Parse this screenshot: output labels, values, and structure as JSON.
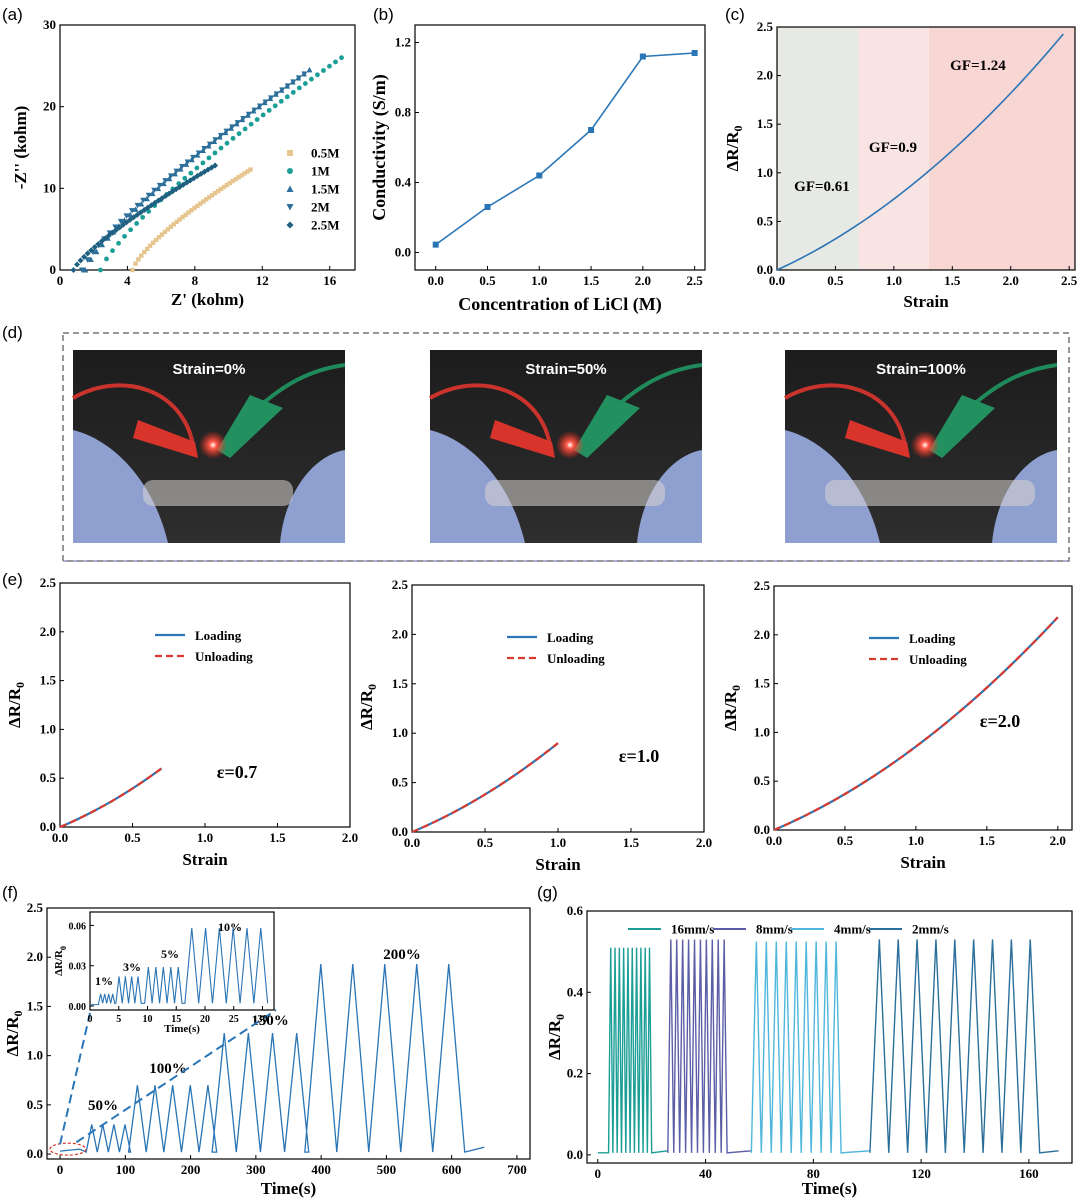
{
  "colors": {
    "blue": "#2a75b5",
    "teal": "#1a9e96",
    "lightblue": "#4fb6dc",
    "navy": "#2b6f9a",
    "purple": "#5b5ea6",
    "red": "#d83a2e",
    "tan": "#e6c68e",
    "regionGray": "#e6e9e4",
    "regionPink1": "#f8e4e2",
    "regionPink2": "#f7d6d4"
  },
  "panels": {
    "a": "(a)",
    "b": "(b)",
    "c": "(c)",
    "d": "(d)",
    "e": "(e)",
    "f": "(f)",
    "g": "(g)"
  },
  "photos": [
    {
      "label": "Strain=0%"
    },
    {
      "label": "Strain=50%"
    },
    {
      "label": "Strain=100%"
    }
  ],
  "chart_data": [
    {
      "id": "a",
      "type": "scatter",
      "xlabel": "Z' (kohm)",
      "ylabel": "-Z'' (kohm)",
      "xlim": [
        0,
        17.5
      ],
      "ylim": [
        0,
        30
      ],
      "xticks": [
        "0",
        "4",
        "8",
        "12",
        "16"
      ],
      "yticks": [
        "0",
        "10",
        "20",
        "30"
      ],
      "series": [
        {
          "name": "0.5M",
          "start": [
            4.3,
            0
          ],
          "end": [
            11.3,
            12.3
          ],
          "curve": 0.25
        },
        {
          "name": "1M",
          "start": [
            2.4,
            0
          ],
          "end": [
            16.7,
            26
          ],
          "curve": 0.2
        },
        {
          "name": "1.5M",
          "start": [
            1.5,
            0
          ],
          "end": [
            14.8,
            24.5
          ],
          "curve": 0.2
        },
        {
          "name": "2M",
          "start": [
            1.3,
            0
          ],
          "end": [
            14.5,
            24
          ],
          "curve": 0.2
        },
        {
          "name": "2.5M",
          "start": [
            0.8,
            0
          ],
          "end": [
            9.2,
            12.8
          ],
          "curve": 0.2
        }
      ]
    },
    {
      "id": "b",
      "type": "line",
      "xlabel": "Concentration of LiCl (M)",
      "ylabel": "Conductivity (S/m)",
      "xlim": [
        -0.2,
        2.6
      ],
      "ylim": [
        -0.1,
        1.3
      ],
      "xticks": [
        "0.0",
        "0.5",
        "1.0",
        "1.5",
        "2.0",
        "2.5"
      ],
      "yticks": [
        "0.0",
        "0.4",
        "0.8",
        "1.2"
      ],
      "x": [
        0,
        0.5,
        1.0,
        1.5,
        2.0,
        2.5
      ],
      "y": [
        0.045,
        0.26,
        0.44,
        0.7,
        1.12,
        1.14
      ]
    },
    {
      "id": "c",
      "type": "line",
      "xlabel": "Strain",
      "ylabel": "ΔR/R0",
      "xlim": [
        0,
        2.55
      ],
      "ylim": [
        0,
        2.5
      ],
      "xticks": [
        "0.0",
        "0.5",
        "1.0",
        "1.5",
        "2.0",
        "2.5"
      ],
      "yticks": [
        "0.0",
        "0.5",
        "1.0",
        "1.5",
        "2.0",
        "2.5"
      ],
      "annotations": [
        "GF=0.61",
        "GF=0.9",
        "GF=1.24"
      ],
      "regions": [
        0,
        0.7,
        1.3,
        2.55
      ],
      "x": [
        0,
        0.5,
        0.7,
        1.0,
        1.3,
        1.5,
        2.0,
        2.45
      ],
      "y": [
        0,
        0.28,
        0.41,
        0.65,
        0.97,
        1.23,
        1.85,
        2.45
      ]
    },
    {
      "id": "e1",
      "type": "line",
      "xlabel": "Strain",
      "ylabel": "ΔR/R0",
      "xlim": [
        0,
        2.0
      ],
      "ylim": [
        0,
        2.5
      ],
      "annotation": "ε=0.7",
      "xticks": [
        "0.0",
        "0.5",
        "1.0",
        "1.5",
        "2.0"
      ],
      "yticks": [
        "0.0",
        "0.5",
        "1.0",
        "1.5",
        "2.0",
        "2.5"
      ],
      "legend": [
        "Loading",
        "Unloading"
      ],
      "xmax": 0.7,
      "ymax": 0.6
    },
    {
      "id": "e2",
      "type": "line",
      "xlabel": "Strain",
      "ylabel": "ΔR/R0",
      "xlim": [
        0,
        2.0
      ],
      "ylim": [
        0,
        2.5
      ],
      "annotation": "ε=1.0",
      "xticks": [
        "0.0",
        "0.5",
        "1.0",
        "1.5",
        "2.0"
      ],
      "yticks": [
        "0.0",
        "0.5",
        "1.0",
        "1.5",
        "2.0",
        "2.5"
      ],
      "legend": [
        "Loading",
        "Unloading"
      ],
      "xmax": 1.0,
      "ymax": 0.9
    },
    {
      "id": "e3",
      "type": "line",
      "xlabel": "Strain",
      "ylabel": "ΔR/R0",
      "xlim": [
        0,
        2.1
      ],
      "ylim": [
        0,
        2.5
      ],
      "annotation": "ε=2.0",
      "xticks": [
        "0.0",
        "0.5",
        "1.0",
        "1.5",
        "2.0"
      ],
      "yticks": [
        "0.0",
        "0.5",
        "1.0",
        "1.5",
        "2.0",
        "2.5"
      ],
      "legend": [
        "Loading",
        "Unloading"
      ],
      "xmax": 2.0,
      "ymax": 2.18
    },
    {
      "id": "f",
      "type": "line",
      "xlabel": "Time(s)",
      "ylabel": "ΔR/R0",
      "xlim": [
        -20,
        720
      ],
      "ylim": [
        -0.05,
        2.5
      ],
      "xticks": [
        "0",
        "100",
        "200",
        "300",
        "400",
        "500",
        "600",
        "700"
      ],
      "yticks": [
        "0.0",
        "0.5",
        "1.0",
        "1.5",
        "2.0",
        "2.5"
      ],
      "labels": [
        "50%",
        "100%",
        "150%",
        "200%"
      ],
      "groups": [
        {
          "start": 40,
          "period": 17,
          "n": 4,
          "peak": 0.3
        },
        {
          "start": 105,
          "period": 27,
          "n": 5,
          "peak": 0.7
        },
        {
          "start": 233,
          "period": 37,
          "n": 4,
          "peak": 1.23
        },
        {
          "start": 375,
          "period": 49,
          "n": 5,
          "peak": 1.93
        }
      ],
      "inset": {
        "xlabel": "Time(s)",
        "ylabel": "ΔR/R0",
        "xlim": [
          0,
          32
        ],
        "ylim": [
          -0.003,
          0.07
        ],
        "xticks": [
          "0",
          "5",
          "10",
          "15",
          "20",
          "25",
          "30"
        ],
        "yticks": [
          "0.00",
          "0.03",
          "0.06"
        ],
        "labels": [
          "1%",
          "3%",
          "5%",
          "10%"
        ],
        "groups": [
          {
            "start": 1.5,
            "period": 0.7,
            "n": 4,
            "peak": 0.009
          },
          {
            "start": 4.5,
            "period": 1.1,
            "n": 4,
            "peak": 0.022
          },
          {
            "start": 9.5,
            "period": 1.3,
            "n": 5,
            "peak": 0.029
          },
          {
            "start": 16.5,
            "period": 2.4,
            "n": 6,
            "peak": 0.058
          }
        ]
      }
    },
    {
      "id": "g",
      "type": "line",
      "xlabel": "Time(s)",
      "ylabel": "ΔR/R0",
      "xlim": [
        -4,
        176
      ],
      "ylim": [
        -0.02,
        0.6
      ],
      "xticks": [
        "0",
        "40",
        "80",
        "120",
        "160"
      ],
      "yticks": [
        "0.0",
        "0.2",
        "0.4",
        "0.6"
      ],
      "series": [
        {
          "name": "16mm/s",
          "start": 4,
          "period": 1.6,
          "n": 10,
          "peak": 0.51
        },
        {
          "name": "8mm/s",
          "start": 26,
          "period": 2.2,
          "n": 10,
          "peak": 0.53
        },
        {
          "name": "4mm/s",
          "start": 57,
          "period": 3.7,
          "n": 9,
          "peak": 0.525
        },
        {
          "name": "2mm/s",
          "start": 101,
          "period": 7.0,
          "n": 9,
          "peak": 0.53
        }
      ]
    }
  ]
}
